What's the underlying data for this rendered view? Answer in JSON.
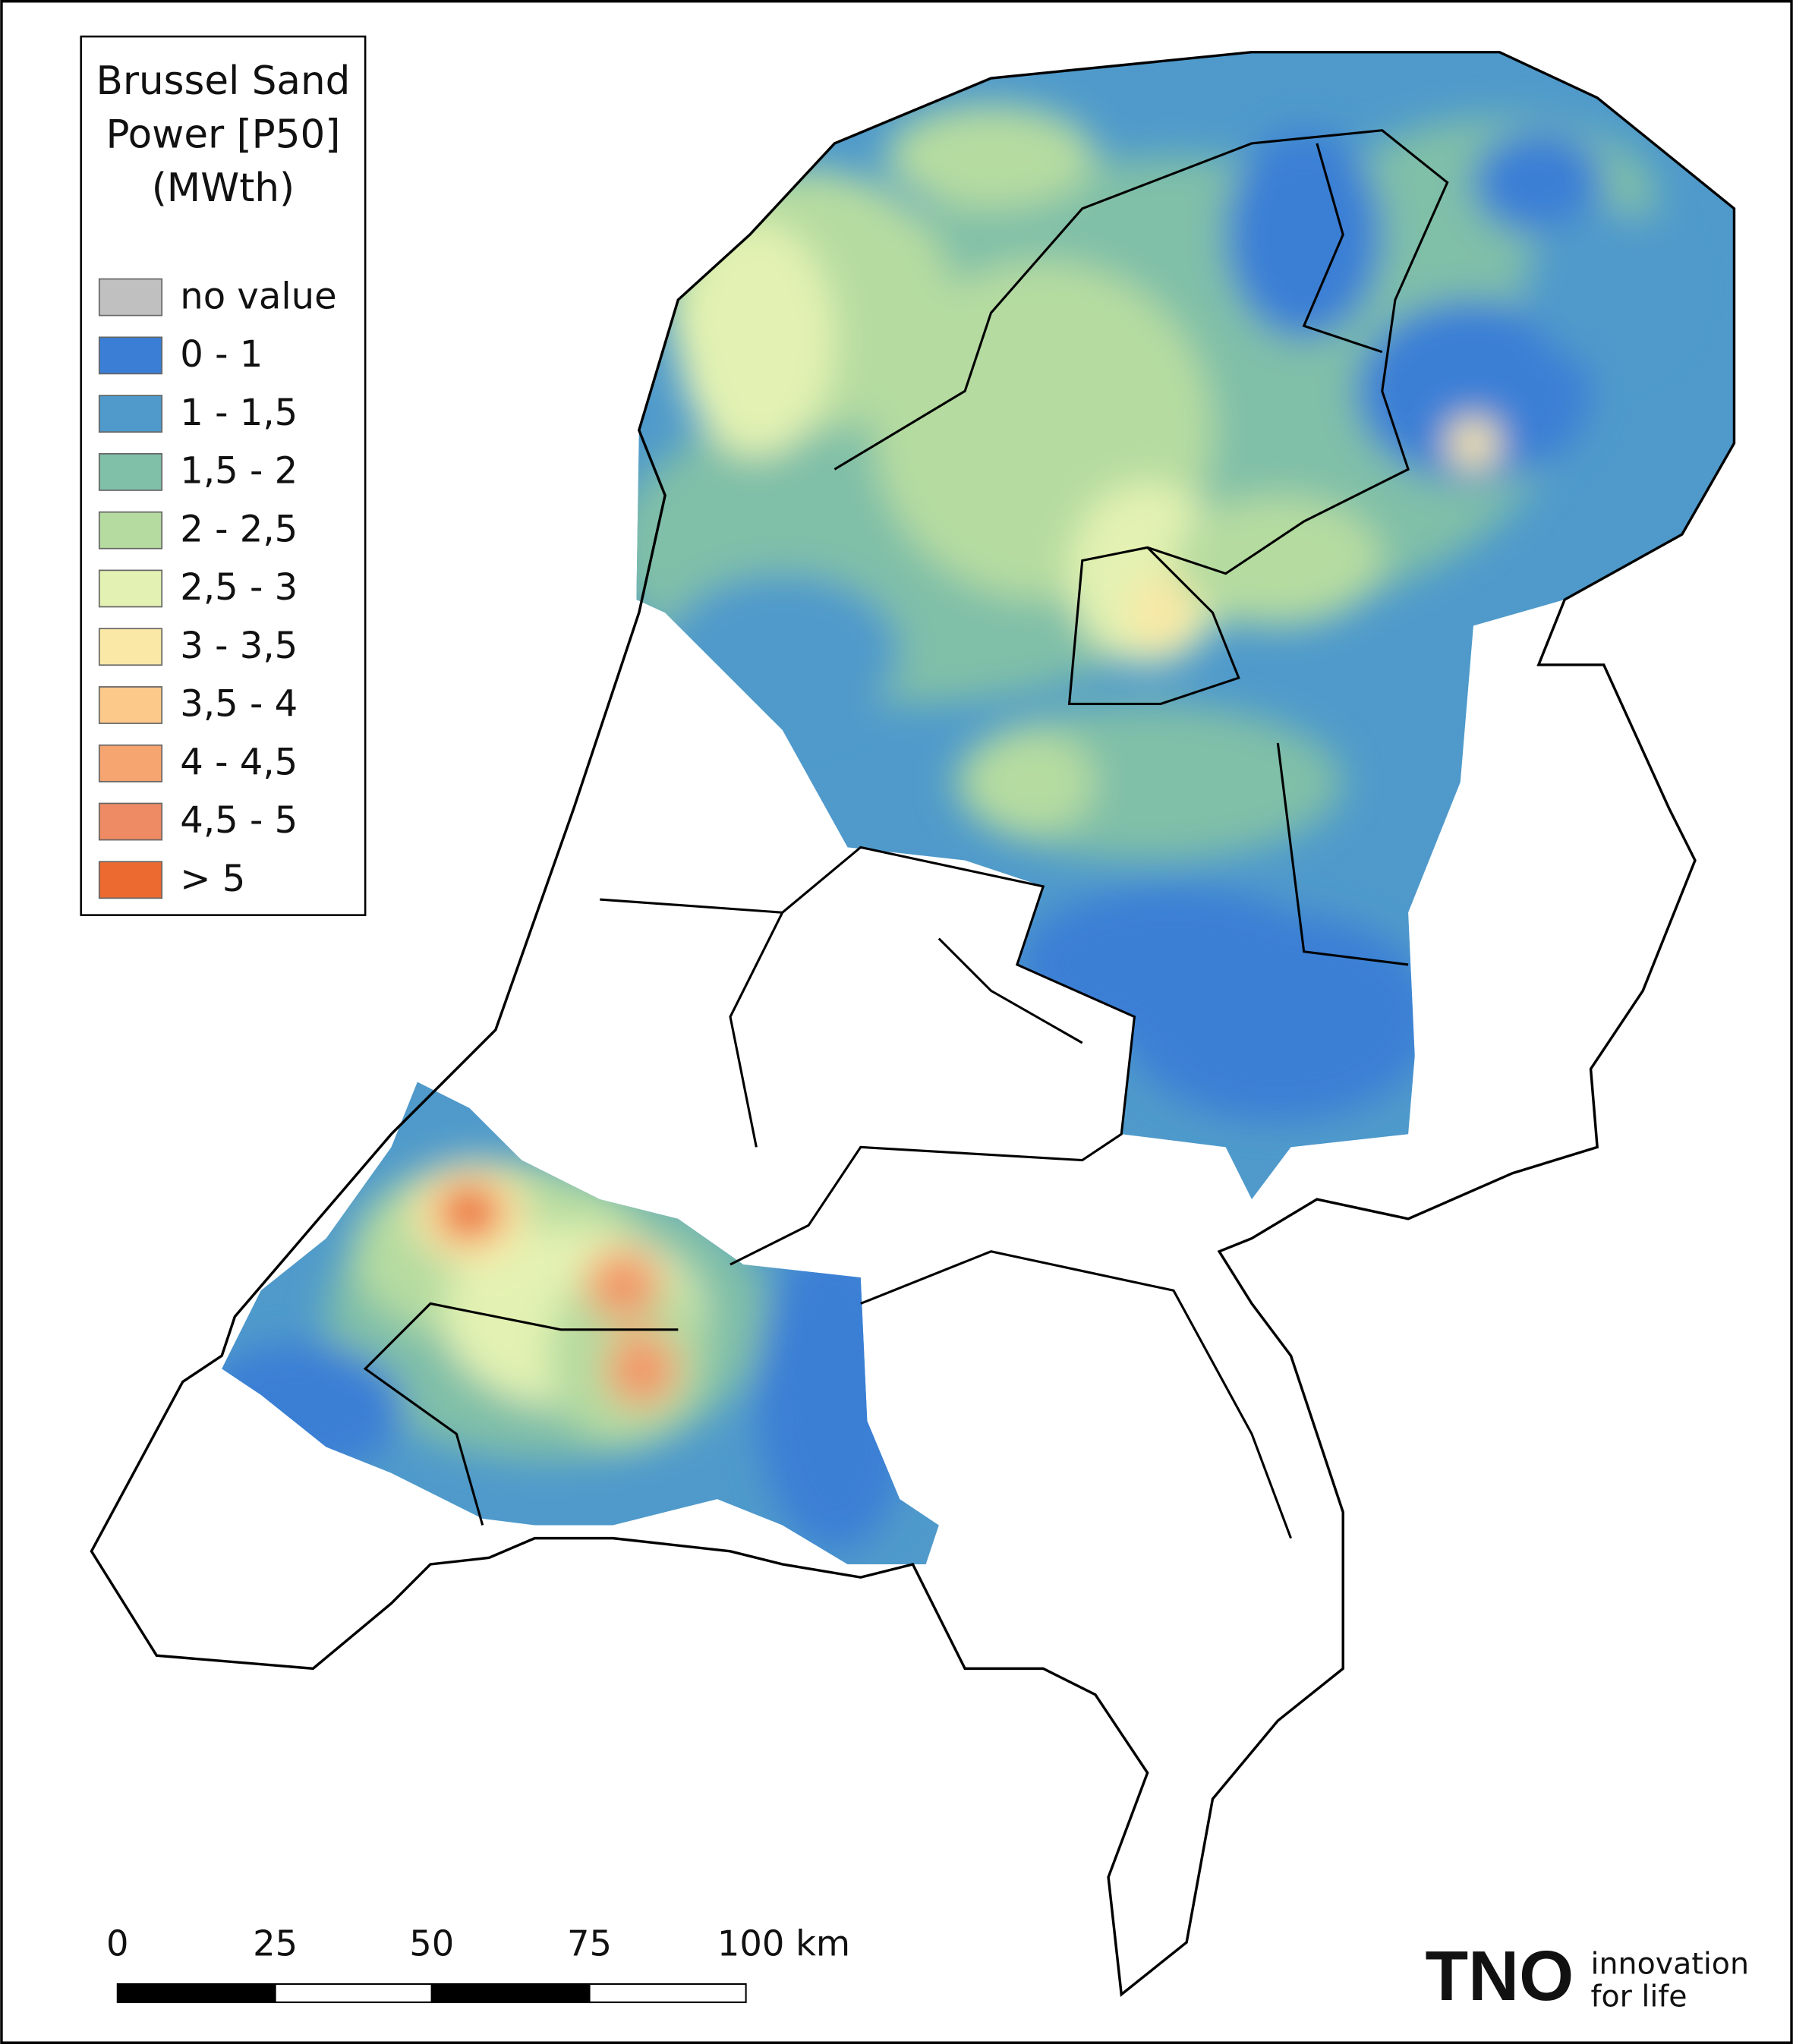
{
  "legend": {
    "title": [
      "Brussel Sand",
      "Power [P50]",
      "(MWth)"
    ],
    "items": [
      {
        "label": "no value",
        "color": "#c0c0c0"
      },
      {
        "label": "0 - 1",
        "color": "#3a7fd5"
      },
      {
        "label": "1 - 1,5",
        "color": "#4f9acb"
      },
      {
        "label": "1,5 - 2",
        "color": "#80bfa8"
      },
      {
        "label": "2 - 2,5",
        "color": "#b5dba0"
      },
      {
        "label": "2,5 - 3",
        "color": "#e3f2b2"
      },
      {
        "label": "3 - 3,5",
        "color": "#f9e8a6"
      },
      {
        "label": "3,5 - 4",
        "color": "#fdc98a"
      },
      {
        "label": "4 - 4,5",
        "color": "#f6a470"
      },
      {
        "label": "4,5 - 5",
        "color": "#ee8a64"
      },
      {
        "label": "> 5",
        "color": "#ec6a30"
      }
    ]
  },
  "scale_bar": {
    "labels": [
      "0",
      "25",
      "50",
      "75",
      "100 km"
    ]
  },
  "logo": {
    "mark": "TNO",
    "tagline": [
      "innovation",
      "for life"
    ]
  }
}
